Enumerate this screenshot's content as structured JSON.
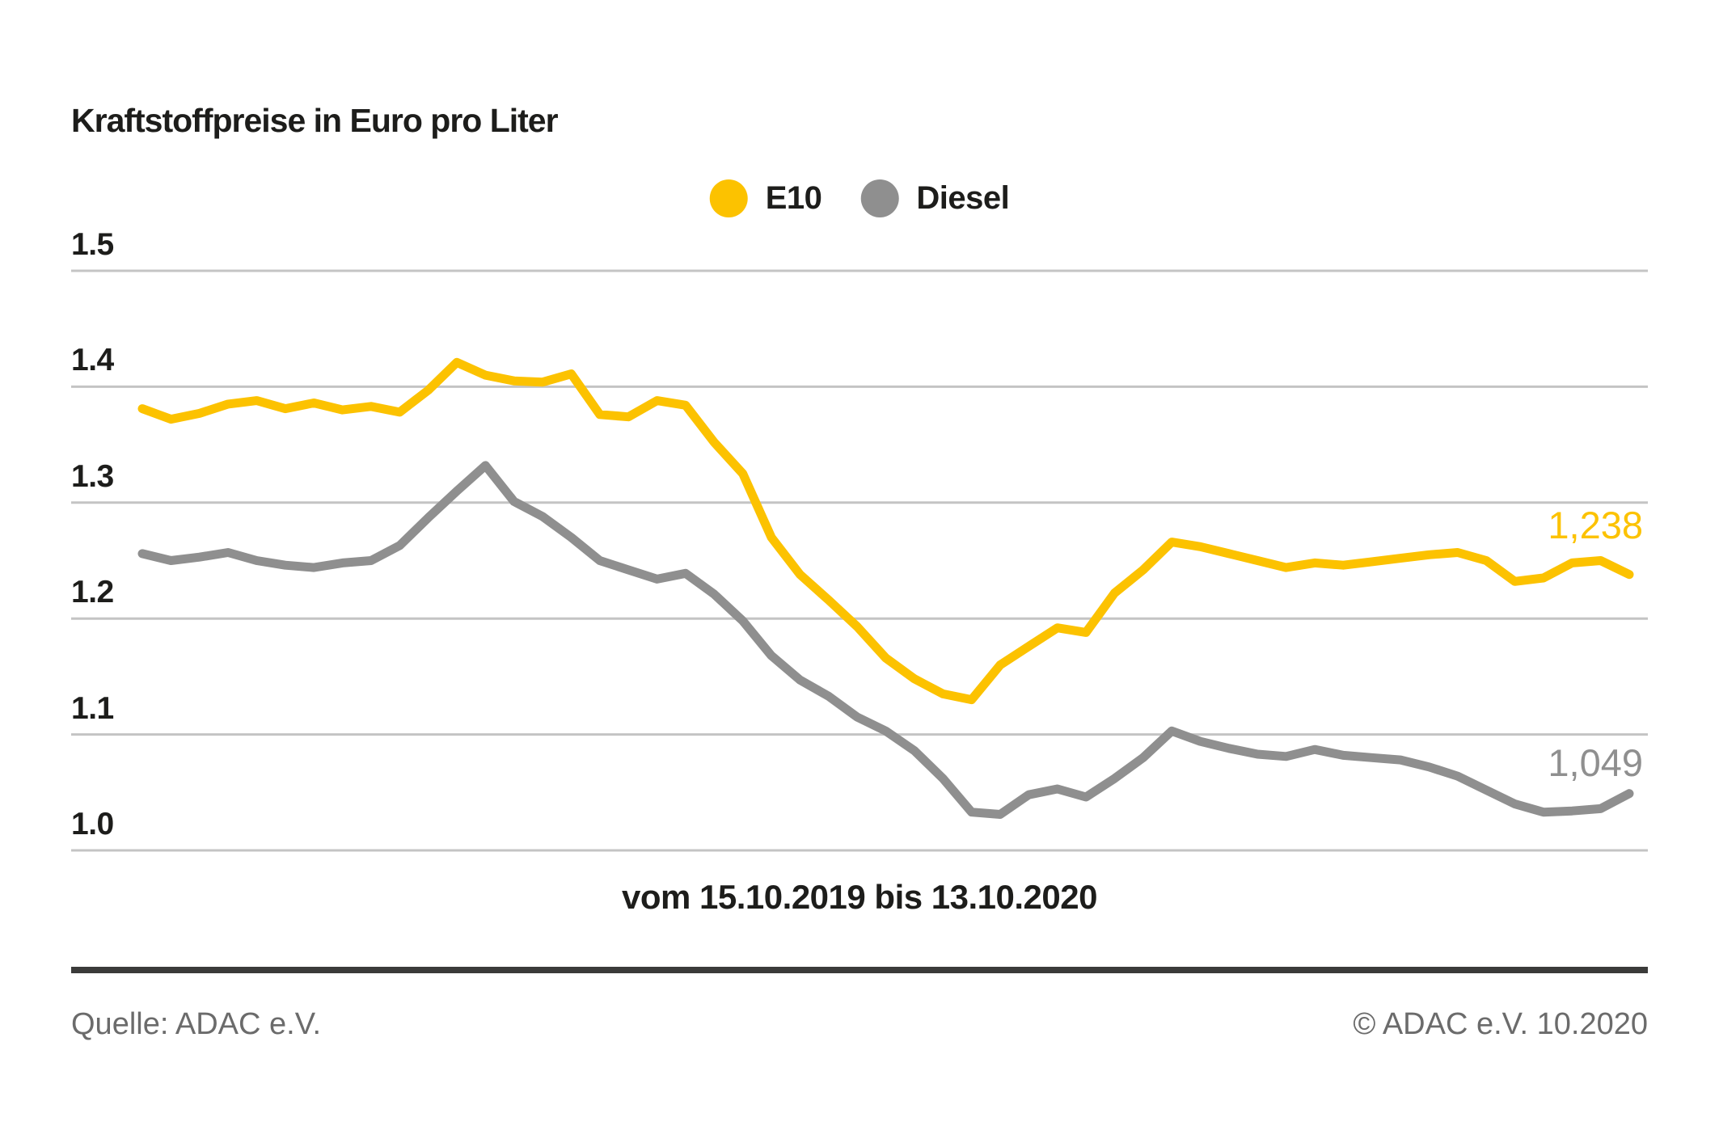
{
  "title": "Kraftstoffpreise in Euro pro Liter",
  "xaxis_label": "vom 15.10.2019 bis 13.10.2020",
  "footer": {
    "source": "Quelle: ADAC e.V.",
    "copyright": "© ADAC e.V. 10.2020"
  },
  "colors": {
    "e10_yellow": "#fcc200",
    "diesel_gray": "#8f8f8f",
    "gridline": "#c4c4c4",
    "divider": "#3b3b3a",
    "text_dark": "#1d1d1b",
    "text_muted": "#6b6b6b"
  },
  "chart_data": {
    "type": "line",
    "title": "Kraftstoffpreise in Euro pro Liter",
    "unit": "Euro pro Liter",
    "x_start": "15.10.2019",
    "x_end": "13.10.2020",
    "x_interval": "weekly",
    "x_range_label": "vom 15.10.2019 bis 13.10.2020",
    "ylim": [
      1.0,
      1.5
    ],
    "yticks": [
      "1.5",
      "1.4",
      "1.3",
      "1.2",
      "1.1",
      "1.0"
    ],
    "grid": "horizontal",
    "legend_position": "top-center",
    "series": [
      {
        "name": "E10",
        "color": "#fcc200",
        "end_label": "1,238",
        "end_value": 1.238,
        "values": [
          1.381,
          1.372,
          1.377,
          1.385,
          1.388,
          1.381,
          1.386,
          1.38,
          1.383,
          1.378,
          1.397,
          1.421,
          1.41,
          1.405,
          1.404,
          1.411,
          1.376,
          1.374,
          1.388,
          1.384,
          1.352,
          1.325,
          1.27,
          1.238,
          1.216,
          1.193,
          1.166,
          1.148,
          1.135,
          1.13,
          1.16,
          1.176,
          1.192,
          1.188,
          1.222,
          1.242,
          1.266,
          1.262,
          1.256,
          1.25,
          1.244,
          1.248,
          1.246,
          1.249,
          1.252,
          1.255,
          1.257,
          1.25,
          1.232,
          1.235,
          1.248,
          1.25,
          1.238
        ]
      },
      {
        "name": "Diesel",
        "color": "#8f8f8f",
        "end_label": "1,049",
        "end_value": 1.049,
        "values": [
          1.256,
          1.25,
          1.253,
          1.257,
          1.25,
          1.246,
          1.244,
          1.248,
          1.25,
          1.263,
          1.287,
          1.31,
          1.332,
          1.301,
          1.288,
          1.27,
          1.25,
          1.242,
          1.234,
          1.239,
          1.221,
          1.198,
          1.168,
          1.147,
          1.133,
          1.115,
          1.103,
          1.086,
          1.062,
          1.033,
          1.031,
          1.048,
          1.053,
          1.046,
          1.062,
          1.08,
          1.103,
          1.094,
          1.088,
          1.083,
          1.081,
          1.087,
          1.082,
          1.08,
          1.078,
          1.072,
          1.064,
          1.052,
          1.04,
          1.033,
          1.034,
          1.036,
          1.049
        ]
      }
    ]
  }
}
